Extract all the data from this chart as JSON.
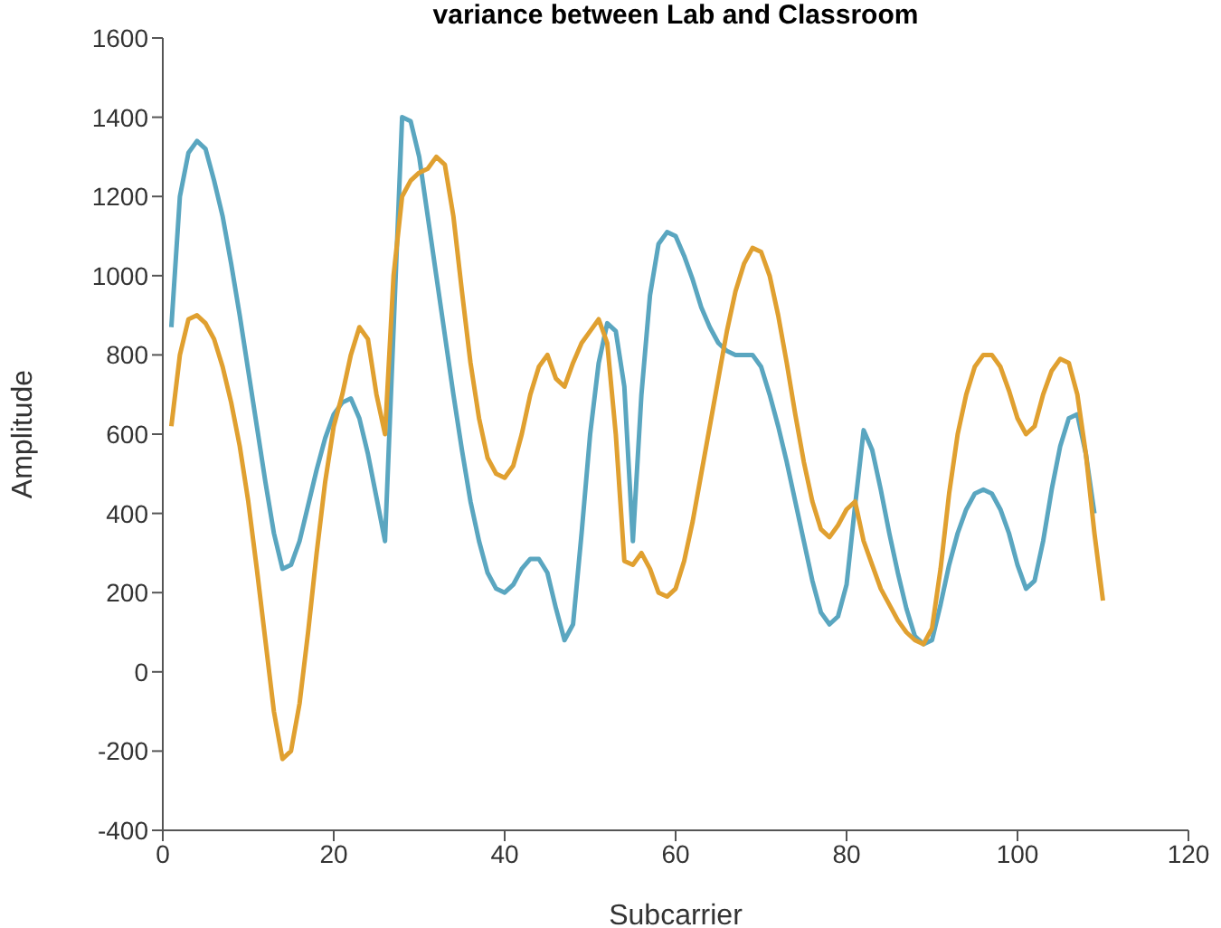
{
  "chart_data": {
    "type": "line",
    "title": "variance between Lab and Classroom",
    "xlabel": "Subcarrier",
    "ylabel": "Amplitude",
    "xlim": [
      0,
      120
    ],
    "xticks": [
      0,
      20,
      40,
      60,
      80,
      100,
      120
    ],
    "ylim": [
      -400,
      1600
    ],
    "yticks": [
      -400,
      -200,
      0,
      200,
      400,
      600,
      800,
      1000,
      1200,
      1400,
      1600
    ],
    "grid": false,
    "legend": false,
    "marker": "none",
    "line_style": "solid",
    "series": [
      {
        "color": "#5aa6c0",
        "x": [
          1,
          2,
          3,
          4,
          5,
          6,
          7,
          8,
          9,
          10,
          11,
          12,
          13,
          14,
          15,
          16,
          17,
          18,
          19,
          20,
          21,
          22,
          23,
          24,
          25,
          26,
          28,
          29,
          30,
          31,
          32,
          33,
          34,
          35,
          36,
          37,
          38,
          39,
          40,
          41,
          42,
          43,
          44,
          45,
          46,
          47,
          48,
          49,
          50,
          51,
          52,
          53,
          54,
          55,
          56,
          57,
          58,
          59,
          60,
          61,
          62,
          63,
          64,
          65,
          66,
          67,
          68,
          69,
          70,
          71,
          72,
          73,
          74,
          75,
          76,
          77,
          78,
          79,
          80,
          81,
          82,
          83,
          84,
          85,
          86,
          87,
          88,
          89,
          90,
          91,
          92,
          93,
          94,
          95,
          96,
          97,
          98,
          99,
          100,
          101,
          102,
          103,
          104,
          105,
          106,
          107,
          108,
          109
        ],
        "values": [
          870,
          1200,
          1310,
          1340,
          1320,
          1240,
          1150,
          1030,
          900,
          760,
          620,
          480,
          350,
          260,
          270,
          330,
          420,
          510,
          590,
          650,
          680,
          690,
          640,
          550,
          440,
          330,
          1400,
          1390,
          1300,
          1150,
          1000,
          850,
          700,
          560,
          430,
          330,
          250,
          210,
          200,
          220,
          260,
          285,
          285,
          250,
          160,
          80,
          120,
          350,
          600,
          780,
          880,
          860,
          720,
          330,
          700,
          950,
          1080,
          1110,
          1100,
          1050,
          990,
          920,
          870,
          830,
          810,
          800,
          800,
          800,
          770,
          700,
          620,
          530,
          430,
          330,
          230,
          150,
          120,
          140,
          220,
          420,
          610,
          560,
          460,
          350,
          250,
          160,
          90,
          70,
          80,
          170,
          270,
          350,
          410,
          450,
          460,
          450,
          410,
          350,
          270,
          210,
          230,
          330,
          460,
          570,
          640,
          650,
          550,
          400
        ]
      },
      {
        "color": "#e0a030",
        "x": [
          1,
          2,
          3,
          4,
          5,
          6,
          7,
          8,
          9,
          10,
          11,
          12,
          13,
          14,
          15,
          16,
          17,
          18,
          19,
          20,
          21,
          22,
          23,
          24,
          25,
          26,
          27,
          28,
          29,
          30,
          31,
          32,
          33,
          34,
          35,
          36,
          37,
          38,
          39,
          40,
          41,
          42,
          43,
          44,
          45,
          46,
          47,
          48,
          49,
          50,
          51,
          52,
          53,
          54,
          55,
          56,
          57,
          58,
          59,
          60,
          61,
          62,
          63,
          64,
          65,
          66,
          67,
          68,
          69,
          70,
          71,
          72,
          73,
          74,
          75,
          76,
          77,
          78,
          79,
          80,
          81,
          82,
          83,
          84,
          85,
          86,
          87,
          88,
          89,
          90,
          91,
          92,
          93,
          94,
          95,
          96,
          97,
          98,
          99,
          100,
          101,
          102,
          103,
          104,
          105,
          106,
          107,
          108,
          109,
          110
        ],
        "values": [
          620,
          800,
          890,
          900,
          880,
          840,
          770,
          680,
          570,
          430,
          260,
          80,
          -100,
          -220,
          -200,
          -80,
          100,
          300,
          480,
          620,
          700,
          800,
          870,
          840,
          700,
          600,
          1000,
          1200,
          1240,
          1260,
          1270,
          1300,
          1280,
          1150,
          960,
          780,
          640,
          540,
          500,
          490,
          520,
          600,
          700,
          770,
          800,
          740,
          720,
          780,
          830,
          860,
          890,
          830,
          600,
          280,
          270,
          300,
          260,
          200,
          190,
          210,
          280,
          380,
          500,
          620,
          740,
          860,
          960,
          1030,
          1070,
          1060,
          1000,
          900,
          780,
          650,
          530,
          430,
          360,
          340,
          370,
          410,
          430,
          330,
          270,
          210,
          170,
          130,
          100,
          80,
          70,
          110,
          260,
          450,
          600,
          700,
          770,
          800,
          800,
          770,
          710,
          640,
          600,
          620,
          700,
          760,
          790,
          780,
          700,
          550,
          350,
          180
        ]
      }
    ]
  }
}
